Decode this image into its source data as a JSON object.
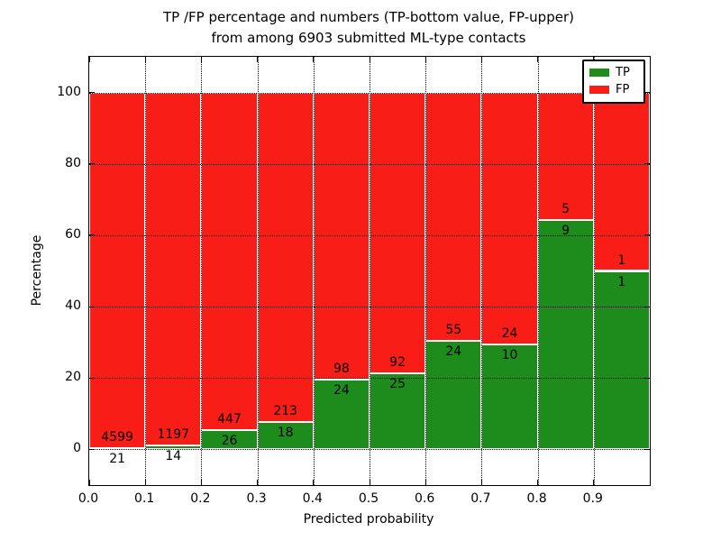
{
  "title": {
    "line1": "TP /FP percentage and numbers (TP-bottom value, FP-upper)",
    "line2": "from among 6903 submitted ML-type contacts"
  },
  "axes": {
    "xlabel": "Predicted probability",
    "ylabel": "Percentage",
    "ylim": [
      -10,
      110
    ],
    "xlim": [
      0,
      1
    ],
    "yticks": [
      {
        "v": 0,
        "label": "0"
      },
      {
        "v": 20,
        "label": "20"
      },
      {
        "v": 40,
        "label": "40"
      },
      {
        "v": 60,
        "label": "60"
      },
      {
        "v": 80,
        "label": "80"
      },
      {
        "v": 100,
        "label": "100"
      }
    ],
    "xticks": [
      {
        "v": 0.0,
        "label": "0.0"
      },
      {
        "v": 0.1,
        "label": "0.1"
      },
      {
        "v": 0.2,
        "label": "0.2"
      },
      {
        "v": 0.3,
        "label": "0.3"
      },
      {
        "v": 0.4,
        "label": "0.4"
      },
      {
        "v": 0.5,
        "label": "0.5"
      },
      {
        "v": 0.6,
        "label": "0.6"
      },
      {
        "v": 0.7,
        "label": "0.7"
      },
      {
        "v": 0.8,
        "label": "0.8"
      },
      {
        "v": 0.9,
        "label": "0.9"
      }
    ],
    "grid": true
  },
  "legend": {
    "position": "upper-right",
    "items": [
      {
        "label": "TP",
        "color": "#1d8c1d"
      },
      {
        "label": "FP",
        "color": "#f91d17"
      }
    ]
  },
  "colors": {
    "tp": "#1d8c1d",
    "fp": "#f91d17",
    "bar_edge": "#ffffff",
    "frame": "#000000"
  },
  "chart_data": {
    "type": "bar",
    "stacked": true,
    "normalized_to_percent": true,
    "title": "TP /FP percentage and numbers (TP-bottom value, FP-upper) from among 6903 submitted ML-type contacts",
    "xlabel": "Predicted probability",
    "ylabel": "Percentage",
    "ylim": [
      -10,
      110
    ],
    "categories": [
      "0.0-0.1",
      "0.1-0.2",
      "0.2-0.3",
      "0.3-0.4",
      "0.4-0.5",
      "0.5-0.6",
      "0.6-0.7",
      "0.7-0.8",
      "0.8-0.9",
      "0.9-1.0"
    ],
    "series": [
      {
        "name": "TP",
        "color": "#1d8c1d",
        "values": [
          21,
          14,
          26,
          18,
          24,
          25,
          24,
          10,
          9,
          1
        ]
      },
      {
        "name": "FP",
        "color": "#f91d17",
        "values": [
          4599,
          1197,
          447,
          213,
          98,
          92,
          55,
          24,
          5,
          1
        ]
      }
    ],
    "bins": [
      {
        "x0": 0.0,
        "x1": 0.1,
        "tp": 21,
        "fp": 4599
      },
      {
        "x0": 0.1,
        "x1": 0.2,
        "tp": 14,
        "fp": 1197
      },
      {
        "x0": 0.2,
        "x1": 0.3,
        "tp": 26,
        "fp": 447
      },
      {
        "x0": 0.3,
        "x1": 0.4,
        "tp": 18,
        "fp": 213
      },
      {
        "x0": 0.4,
        "x1": 0.5,
        "tp": 24,
        "fp": 98
      },
      {
        "x0": 0.5,
        "x1": 0.6,
        "tp": 25,
        "fp": 92
      },
      {
        "x0": 0.6,
        "x1": 0.7,
        "tp": 24,
        "fp": 55
      },
      {
        "x0": 0.7,
        "x1": 0.8,
        "tp": 10,
        "fp": 24
      },
      {
        "x0": 0.8,
        "x1": 0.9,
        "tp": 9,
        "fp": 5
      },
      {
        "x0": 0.9,
        "x1": 1.0,
        "tp": 1,
        "fp": 1
      }
    ],
    "total_contacts": 6903
  }
}
